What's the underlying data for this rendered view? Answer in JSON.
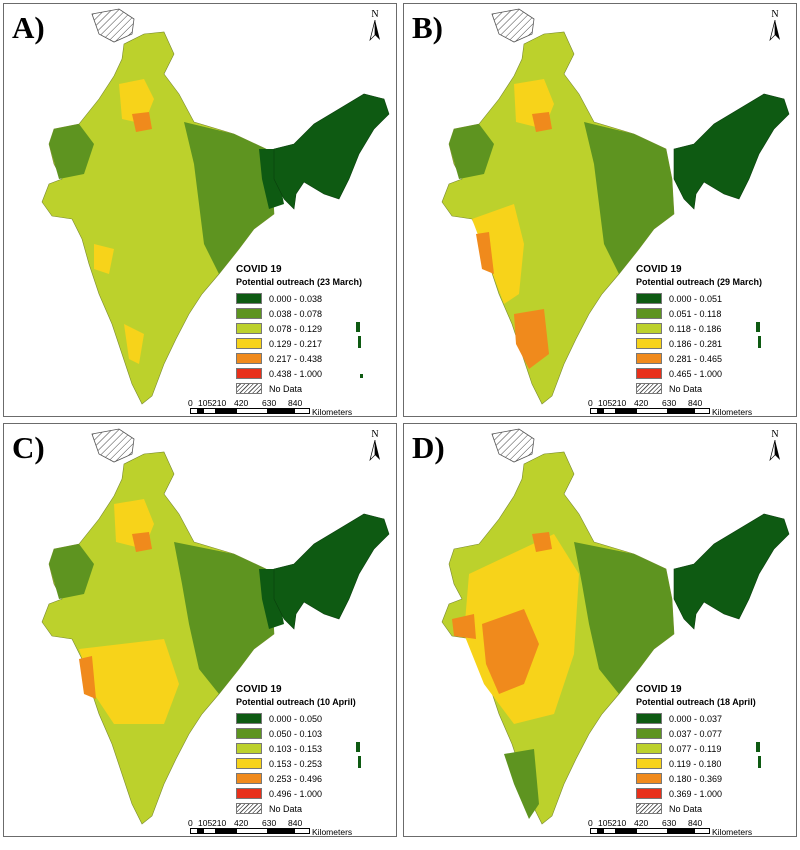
{
  "colors": {
    "c1": "#0e5a12",
    "c2": "#5e9420",
    "c3": "#bcd12c",
    "c4": "#f7d31a",
    "c5": "#f08a1c",
    "c6": "#e8301a",
    "no_data": "hatched"
  },
  "panels": [
    {
      "label": "A)",
      "legend_title": "COVID 19",
      "legend_subtitle": "Potential outreach (23 March)",
      "classes": [
        "0.000 - 0.038",
        "0.038 - 0.078",
        "0.078 - 0.129",
        "0.129 - 0.217",
        "0.217 - 0.438",
        "0.438 - 1.000"
      ],
      "no_data": "No Data"
    },
    {
      "label": "B)",
      "legend_title": "COVID 19",
      "legend_subtitle": "Potential outreach (29 March)",
      "classes": [
        "0.000 - 0.051",
        "0.051 - 0.118",
        "0.118 - 0.186",
        "0.186 - 0.281",
        "0.281 - 0.465",
        "0.465 - 1.000"
      ],
      "no_data": "No Data"
    },
    {
      "label": "C)",
      "legend_title": "COVID 19",
      "legend_subtitle": "Potential outreach (10 April)",
      "classes": [
        "0.000 - 0.050",
        "0.050 - 0.103",
        "0.103 - 0.153",
        "0.153 - 0.253",
        "0.253 - 0.496",
        "0.496 - 1.000"
      ],
      "no_data": "No Data"
    },
    {
      "label": "D)",
      "legend_title": "COVID 19",
      "legend_subtitle": "Potential outreach (18 April)",
      "classes": [
        "0.000 - 0.037",
        "0.037 - 0.077",
        "0.077 - 0.119",
        "0.119 - 0.180",
        "0.180 - 0.369",
        "0.369 - 1.000"
      ],
      "no_data": "No Data"
    }
  ],
  "north_label": "N",
  "scale": {
    "ticks": [
      "0",
      "105",
      "210",
      "420",
      "630",
      "840"
    ],
    "unit": "Kilometers"
  }
}
